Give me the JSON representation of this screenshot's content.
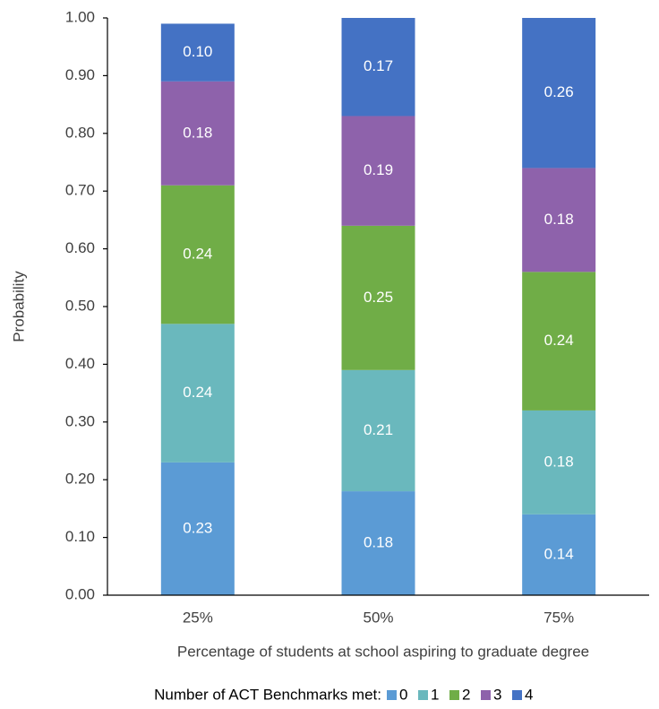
{
  "chart_data": {
    "type": "stacked_bar",
    "x_label": "Percentage of students at school aspiring to graduate degree",
    "y_label": "Probability",
    "legend_title": "Number of ACT Benchmarks met:",
    "categories": [
      "25%",
      "50%",
      "75%"
    ],
    "series": [
      {
        "name": "0",
        "color": "#5b9bd5",
        "values": [
          0.23,
          0.18,
          0.14
        ],
        "value_labels": [
          "0.23",
          "0.18",
          "0.14"
        ]
      },
      {
        "name": "1",
        "color": "#6ab8bd",
        "values": [
          0.24,
          0.21,
          0.18
        ],
        "value_labels": [
          "0.24",
          "0.21",
          "0.18"
        ]
      },
      {
        "name": "2",
        "color": "#70ad47",
        "values": [
          0.24,
          0.25,
          0.24
        ],
        "value_labels": [
          "0.24",
          "0.25",
          "0.24"
        ]
      },
      {
        "name": "3",
        "color": "#8e62ab",
        "values": [
          0.18,
          0.19,
          0.18
        ],
        "value_labels": [
          "0.18",
          "0.19",
          "0.18"
        ]
      },
      {
        "name": "4",
        "color": "#4472c4",
        "values": [
          0.1,
          0.17,
          0.26
        ],
        "value_labels": [
          "0.10",
          "0.17",
          "0.26"
        ]
      }
    ],
    "ylim": [
      0,
      1
    ],
    "yticks": [
      {
        "value": 0,
        "label": "0.00"
      },
      {
        "value": 0.1,
        "label": "0.10"
      },
      {
        "value": 0.2,
        "label": "0.20"
      },
      {
        "value": 0.3,
        "label": "0.30"
      },
      {
        "value": 0.4,
        "label": "0.40"
      },
      {
        "value": 0.5,
        "label": "0.50"
      },
      {
        "value": 0.6,
        "label": "0.60"
      },
      {
        "value": 0.7,
        "label": "0.70"
      },
      {
        "value": 0.8,
        "label": "0.80"
      },
      {
        "value": 0.9,
        "label": "0.90"
      },
      {
        "value": 1,
        "label": "1.00"
      }
    ],
    "legend": "bottom"
  }
}
